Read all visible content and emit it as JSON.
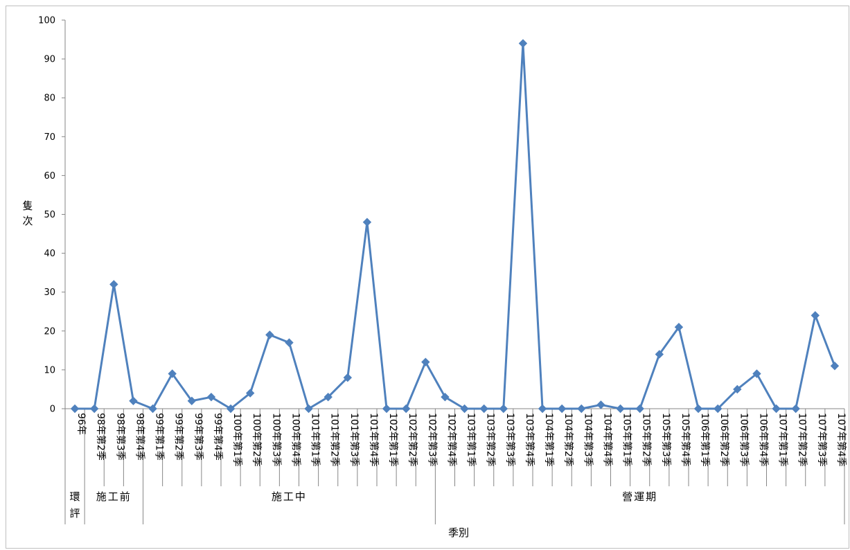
{
  "chart_data": {
    "type": "line",
    "ylabel": "隻次",
    "xlabel": "季別",
    "ylim": [
      0,
      100
    ],
    "y_ticks": [
      0,
      10,
      20,
      30,
      40,
      50,
      60,
      70,
      80,
      90,
      100
    ],
    "grid": false,
    "legend": "none",
    "line_color": "#4f81bd",
    "categories": [
      "96年",
      "98年第2季",
      "98年第3季",
      "98年第4季",
      "99年第1季",
      "99年第2季",
      "99年第3季",
      "99年第4季",
      "100年第1季",
      "100年第2季",
      "100年第3季",
      "100年第4季",
      "101年第1季",
      "101年第2季",
      "101年第3季",
      "101年第4季",
      "102年第1季",
      "102年第2季",
      "102年第3季",
      "102年第4季",
      "103年第1季",
      "103年第2季",
      "103年第3季",
      "103年第4季",
      "104年第1季",
      "104年第2季",
      "104年第3季",
      "104年第4季",
      "105年第1季",
      "105年第2季",
      "105年第3季",
      "105年第4季",
      "106年第1季",
      "106年第2季",
      "106年第3季",
      "106年第4季",
      "107年第1季",
      "107年第2季",
      "107年第3季",
      "107年第4季"
    ],
    "values": [
      0,
      0,
      32,
      2,
      0,
      9,
      2,
      3,
      0,
      4,
      19,
      17,
      0,
      3,
      8,
      48,
      0,
      0,
      12,
      3,
      0,
      0,
      0,
      94,
      0,
      0,
      0,
      1,
      0,
      0,
      14,
      21,
      0,
      0,
      5,
      9,
      0,
      0,
      24,
      11
    ],
    "groups": [
      {
        "label": "環評",
        "count": 1
      },
      {
        "label": "施工前",
        "count": 3
      },
      {
        "label": "施工中",
        "count": 15
      },
      {
        "label": "營運期",
        "count": 21
      }
    ]
  }
}
